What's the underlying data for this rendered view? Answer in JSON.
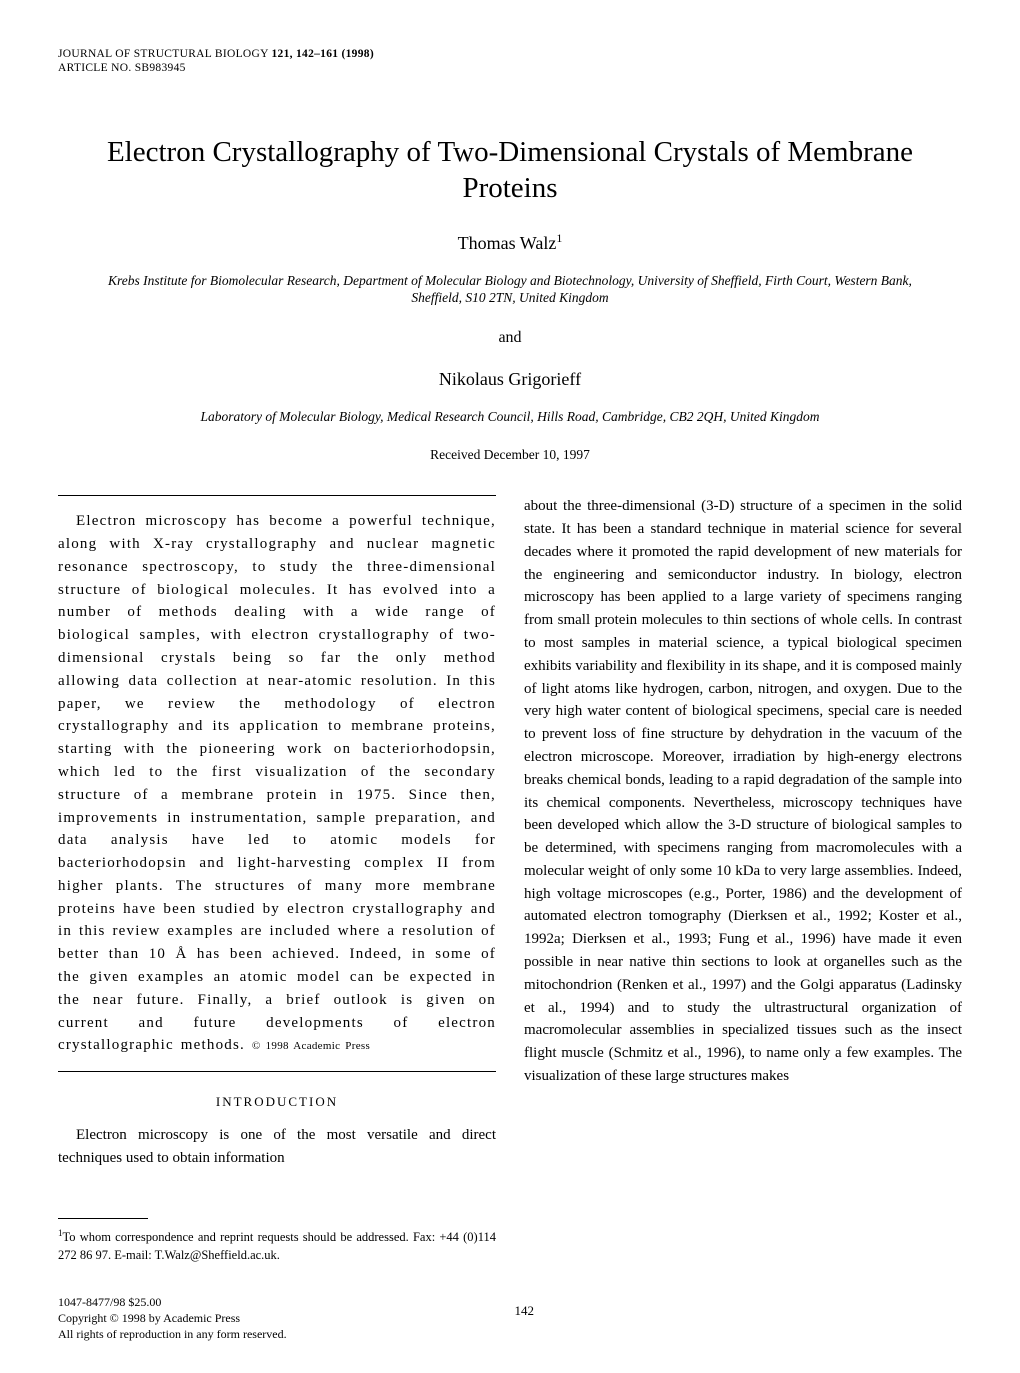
{
  "header": {
    "journal_line": "JOURNAL OF STRUCTURAL BIOLOGY",
    "volume_pages": "121, 142–161 (1998)",
    "article_no_label": "ARTICLE NO.",
    "article_no": "SB983945"
  },
  "title": "Electron Crystallography of Two-Dimensional Crystals of Membrane Proteins",
  "author1": {
    "name": "Thomas Walz",
    "sup": "1",
    "affiliation": "Krebs Institute for Biomolecular Research, Department of Molecular Biology and Biotechnology, University of Sheffield, Firth Court, Western Bank, Sheffield, S10 2TN, United Kingdom"
  },
  "and": "and",
  "author2": {
    "name": "Nikolaus Grigorieff",
    "affiliation": "Laboratory of Molecular Biology, Medical Research Council, Hills Road, Cambridge, CB2 2QH, United Kingdom"
  },
  "received": "Received December 10, 1997",
  "abstract": "Electron microscopy has become a powerful technique, along with X-ray crystallography and nuclear magnetic resonance spectroscopy, to study the three-dimensional structure of biological molecules. It has evolved into a number of methods dealing with a wide range of biological samples, with electron crystallography of two-dimensional crystals being so far the only method allowing data collection at near-atomic resolution. In this paper, we review the methodology of electron crystallography and its application to membrane proteins, starting with the pioneering work on bacteriorhodopsin, which led to the first visualization of the secondary structure of a membrane protein in 1975. Since then, improvements in instrumentation, sample preparation, and data analysis have led to atomic models for bacteriorhodopsin and light-harvesting complex II from higher plants. The structures of many more membrane proteins have been studied by electron crystallography and in this review examples are included where a resolution of better than 10 Å has been achieved. Indeed, in some of the given examples an atomic model can be expected in the near future. Finally, a brief outlook is given on current and future developments of electron crystallographic methods.",
  "copyright_inline": "© 1998 Academic Press",
  "introduction": {
    "heading": "INTRODUCTION",
    "para1": "Electron microscopy is one of the most versatile and direct techniques used to obtain information",
    "para2": "about the three-dimensional (3-D) structure of a specimen in the solid state. It has been a standard technique in material science for several decades where it promoted the rapid development of new materials for the engineering and semiconductor industry. In biology, electron microscopy has been applied to a large variety of specimens ranging from small protein molecules to thin sections of whole cells. In contrast to most samples in material science, a typical biological specimen exhibits variability and flexibility in its shape, and it is composed mainly of light atoms like hydrogen, carbon, nitrogen, and oxygen. Due to the very high water content of biological specimens, special care is needed to prevent loss of fine structure by dehydration in the vacuum of the electron microscope. Moreover, irradiation by high-energy electrons breaks chemical bonds, leading to a rapid degradation of the sample into its chemical components. Nevertheless, microscopy techniques have been developed which allow the 3-D structure of biological samples to be determined, with specimens ranging from macromolecules with a molecular weight of only some 10 kDa to very large assemblies. Indeed, high voltage microscopes (e.g., Porter, 1986) and the development of automated electron tomography (Dierksen et al., 1992; Koster et al., 1992a; Dierksen et al., 1993; Fung et al., 1996) have made it even possible in near native thin sections to look at organelles such as the mitochondrion (Renken et al., 1997) and the Golgi apparatus (Ladinsky et al., 1994) and to study the ultrastructural organization of macromolecular assemblies in specialized tissues such as the insect flight muscle (Schmitz et al., 1996), to name only a few examples. The visualization of these large structures makes"
  },
  "footnote": {
    "sup": "1",
    "text": "To whom correspondence and reprint requests should be addressed. Fax: +44 (0)114 272 86 97. E-mail: T.Walz@Sheffield.ac.uk."
  },
  "footer": {
    "issn": "1047-8477/98 $25.00",
    "copyright": "Copyright © 1998 by Academic Press",
    "rights": "All rights of reproduction in any form reserved.",
    "page_number": "142"
  }
}
